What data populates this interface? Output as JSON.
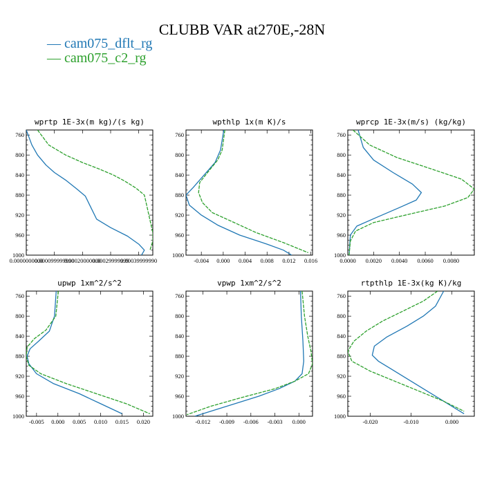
{
  "title": "CLUBB VAR at270E,-28N",
  "legend": [
    {
      "label": "— cam075_dflt_rg",
      "color": "#1f77b4"
    },
    {
      "label": "— cam075_c2_rg",
      "color": "#2ca02c"
    }
  ],
  "colors": {
    "dflt": "#1f77b4",
    "c2": "#2ca02c"
  },
  "chart_data": [
    {
      "type": "line",
      "title": "wprtp  1E-3x(m kg)/(s kg)",
      "y_label_values": [
        760,
        800,
        840,
        880,
        920,
        960,
        1000
      ],
      "ylim": [
        1000,
        750
      ],
      "xlim": [
        0,
        0.00045
      ],
      "x_ticks": [
        0,
        0.0001,
        0.0002,
        0.0003,
        0.0004
      ],
      "x_tick_labels": [
        "0.0000000000",
        "0.000099999990",
        "0.00020000000",
        "0.00029999999",
        "0.00039999990"
      ],
      "series": [
        {
          "name": "cam075_dflt_rg",
          "points": [
            [
              0.0,
              750
            ],
            [
              2e-05,
              780
            ],
            [
              4e-05,
              800
            ],
            [
              7e-05,
              820
            ],
            [
              0.0001,
              835
            ],
            [
              0.00014,
              850
            ],
            [
              0.00018,
              868
            ],
            [
              0.00021,
              882
            ],
            [
              0.00023,
              905
            ],
            [
              0.00025,
              928
            ],
            [
              0.0003,
              945
            ],
            [
              0.00036,
              962
            ],
            [
              0.0004,
              978
            ],
            [
              0.00042,
              990
            ],
            [
              0.00041,
              1000
            ]
          ]
        },
        {
          "name": "cam075_c2_rg",
          "points": [
            [
              4e-05,
              750
            ],
            [
              8e-05,
              780
            ],
            [
              0.00014,
              800
            ],
            [
              0.0002,
              815
            ],
            [
              0.00026,
              828
            ],
            [
              0.00031,
              840
            ],
            [
              0.00035,
              852
            ],
            [
              0.00039,
              866
            ],
            [
              0.00042,
              880
            ],
            [
              0.00043,
              905
            ],
            [
              0.00044,
              930
            ],
            [
              0.00045,
              955
            ],
            [
              0.00045,
              972
            ],
            [
              0.00044,
              990
            ]
          ]
        }
      ]
    },
    {
      "type": "line",
      "title": "wpthlp  1x(m K)/s",
      "y_label_values": [
        760,
        800,
        840,
        880,
        920,
        960,
        1000
      ],
      "ylim": [
        1000,
        750
      ],
      "xlim": [
        -0.0068,
        0.0163
      ],
      "x_ticks": [
        -0.004,
        0,
        0.004,
        0.008,
        0.012,
        0.016
      ],
      "x_tick_labels": [
        "-0.004",
        "0.000",
        "0.004",
        "0.008",
        "0.012",
        "0.016"
      ],
      "series": [
        {
          "name": "cam075_dflt_rg",
          "points": [
            [
              0.0001,
              750
            ],
            [
              -0.0005,
              790
            ],
            [
              -0.0015,
              815
            ],
            [
              -0.0035,
              840
            ],
            [
              -0.0055,
              865
            ],
            [
              -0.0068,
              880
            ],
            [
              -0.0062,
              900
            ],
            [
              -0.004,
              920
            ],
            [
              -0.001,
              940
            ],
            [
              0.003,
              960
            ],
            [
              0.008,
              978
            ],
            [
              0.011,
              990
            ],
            [
              0.0125,
              1000
            ]
          ]
        },
        {
          "name": "cam075_c2_rg",
          "points": [
            [
              0.0003,
              750
            ],
            [
              -0.0002,
              790
            ],
            [
              -0.001,
              810
            ],
            [
              -0.0025,
              830
            ],
            [
              -0.0043,
              855
            ],
            [
              -0.0045,
              875
            ],
            [
              -0.0038,
              895
            ],
            [
              -0.002,
              915
            ],
            [
              0.002,
              935
            ],
            [
              0.006,
              955
            ],
            [
              0.011,
              975
            ],
            [
              0.0155,
              995
            ]
          ]
        }
      ]
    },
    {
      "type": "line",
      "title": "wprcp  1E-3x(m/s) (kg/kg)",
      "y_label_values": [
        760,
        800,
        840,
        880,
        920,
        960,
        1000
      ],
      "ylim": [
        1000,
        750
      ],
      "xlim": [
        0,
        0.0098
      ],
      "x_ticks": [
        0,
        0.002,
        0.004,
        0.006,
        0.008
      ],
      "x_tick_labels": [
        "0.0000",
        "0.0020",
        "0.0040",
        "0.0060",
        "0.0080"
      ],
      "series": [
        {
          "name": "cam075_dflt_rg",
          "points": [
            [
              0.0008,
              750
            ],
            [
              0.0012,
              785
            ],
            [
              0.002,
              810
            ],
            [
              0.0035,
              835
            ],
            [
              0.005,
              858
            ],
            [
              0.0057,
              875
            ],
            [
              0.0053,
              890
            ],
            [
              0.004,
              905
            ],
            [
              0.0022,
              925
            ],
            [
              0.0007,
              942
            ],
            [
              0.0002,
              960
            ],
            [
              0.0001,
              1000
            ]
          ]
        },
        {
          "name": "cam075_c2_rg",
          "points": [
            [
              0.0004,
              750
            ],
            [
              0.0017,
              780
            ],
            [
              0.0038,
              805
            ],
            [
              0.0065,
              828
            ],
            [
              0.0088,
              848
            ],
            [
              0.0098,
              868
            ],
            [
              0.0093,
              885
            ],
            [
              0.0075,
              902
            ],
            [
              0.0048,
              918
            ],
            [
              0.002,
              935
            ],
            [
              0.0006,
              952
            ],
            [
              0.0002,
              972
            ],
            [
              0.0001,
              1000
            ]
          ]
        }
      ]
    },
    {
      "type": "line",
      "title": "upwp  1xm^2/s^2",
      "y_label_values": [
        760,
        800,
        840,
        880,
        920,
        960,
        1000
      ],
      "ylim": [
        1000,
        750
      ],
      "xlim": [
        -0.0074,
        0.0222
      ],
      "x_ticks": [
        -0.005,
        0,
        0.005,
        0.01,
        0.015,
        0.02
      ],
      "x_tick_labels": [
        "-0.005",
        "0.000",
        "0.005",
        "0.010",
        "0.015",
        "0.020"
      ],
      "series": [
        {
          "name": "cam075_dflt_rg",
          "points": [
            [
              -0.0004,
              750
            ],
            [
              -0.0008,
              800
            ],
            [
              -0.002,
              830
            ],
            [
              -0.0045,
              850
            ],
            [
              -0.0065,
              865
            ],
            [
              -0.0072,
              880
            ],
            [
              -0.0068,
              895
            ],
            [
              -0.005,
              915
            ],
            [
              -0.001,
              935
            ],
            [
              0.005,
              955
            ],
            [
              0.01,
              975
            ],
            [
              0.015,
              995
            ]
          ]
        },
        {
          "name": "cam075_c2_rg",
          "points": [
            [
              0.0001,
              750
            ],
            [
              -0.0005,
              800
            ],
            [
              -0.0028,
              828
            ],
            [
              -0.0055,
              845
            ],
            [
              -0.0072,
              862
            ],
            [
              -0.0074,
              880
            ],
            [
              -0.0068,
              898
            ],
            [
              -0.004,
              915
            ],
            [
              0.002,
              935
            ],
            [
              0.009,
              955
            ],
            [
              0.016,
              975
            ],
            [
              0.0215,
              995
            ]
          ]
        }
      ]
    },
    {
      "type": "line",
      "title": "vpwp  1xm^2/s^2",
      "y_label_values": [
        760,
        800,
        840,
        880,
        920,
        960,
        1000
      ],
      "ylim": [
        1000,
        750
      ],
      "xlim": [
        -0.0141,
        0.0017
      ],
      "x_ticks": [
        -0.012,
        -0.009,
        -0.006,
        -0.003,
        0
      ],
      "x_tick_labels": [
        "-0.012",
        "-0.009",
        "-0.006",
        "-0.003",
        "0.000"
      ],
      "series": [
        {
          "name": "cam075_dflt_rg",
          "points": [
            [
              0.0002,
              750
            ],
            [
              0.0003,
              800
            ],
            [
              0.0005,
              850
            ],
            [
              0.0006,
              890
            ],
            [
              0.0004,
              915
            ],
            [
              -0.0005,
              930
            ],
            [
              -0.0025,
              945
            ],
            [
              -0.005,
              960
            ],
            [
              -0.008,
              975
            ],
            [
              -0.011,
              990
            ],
            [
              -0.013,
              1000
            ]
          ]
        },
        {
          "name": "cam075_c2_rg",
          "points": [
            [
              0.0004,
              750
            ],
            [
              0.0007,
              800
            ],
            [
              0.0011,
              840
            ],
            [
              0.0015,
              870
            ],
            [
              0.0017,
              895
            ],
            [
              0.0012,
              915
            ],
            [
              -0.0005,
              930
            ],
            [
              -0.003,
              945
            ],
            [
              -0.007,
              962
            ],
            [
              -0.011,
              980
            ],
            [
              -0.014,
              997
            ]
          ]
        }
      ]
    },
    {
      "type": "line",
      "title": "rtpthlp  1E-3x(kg K)/kg",
      "y_label_values": [
        760,
        800,
        840,
        880,
        920,
        960,
        1000
      ],
      "ylim": [
        1000,
        750
      ],
      "xlim": [
        -0.0255,
        0.0055
      ],
      "x_ticks": [
        -0.02,
        -0.01,
        0
      ],
      "x_tick_labels": [
        "-0.020",
        "-0.010",
        "0.000"
      ],
      "series": [
        {
          "name": "cam075_dflt_rg",
          "points": [
            [
              -0.002,
              750
            ],
            [
              -0.004,
              780
            ],
            [
              -0.007,
              800
            ],
            [
              -0.011,
              820
            ],
            [
              -0.016,
              842
            ],
            [
              -0.019,
              860
            ],
            [
              -0.0195,
              878
            ],
            [
              -0.018,
              890
            ],
            [
              -0.015,
              905
            ],
            [
              -0.011,
              925
            ],
            [
              -0.006,
              950
            ],
            [
              -0.001,
              975
            ],
            [
              0.003,
              995
            ]
          ]
        },
        {
          "name": "cam075_c2_rg",
          "points": [
            [
              -0.0035,
              750
            ],
            [
              -0.007,
              770
            ],
            [
              -0.012,
              790
            ],
            [
              -0.017,
              810
            ],
            [
              -0.021,
              830
            ],
            [
              -0.024,
              850
            ],
            [
              -0.0255,
              870
            ],
            [
              -0.0245,
              890
            ],
            [
              -0.02,
              910
            ],
            [
              -0.014,
              930
            ],
            [
              -0.008,
              950
            ],
            [
              -0.002,
              970
            ],
            [
              0.003,
              990
            ]
          ]
        }
      ]
    }
  ]
}
